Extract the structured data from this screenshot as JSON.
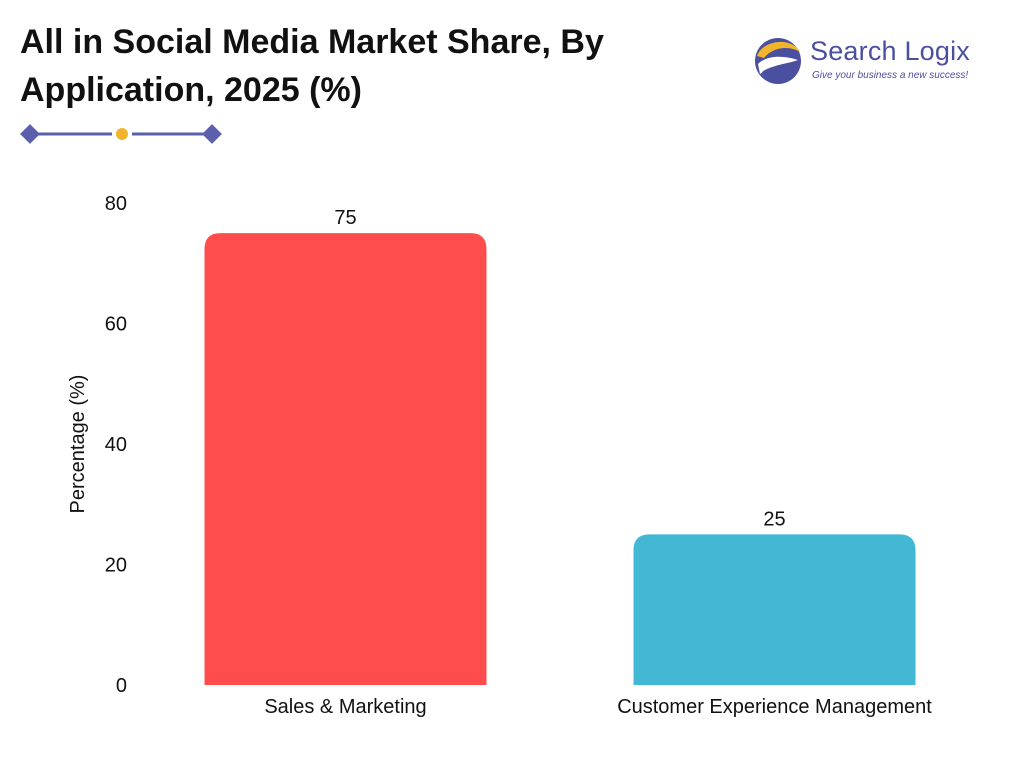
{
  "title_line1": "All in Social Media Market Share, By",
  "title_line2": "Application, 2025 (%)",
  "brand": {
    "name": "Search Logix",
    "tagline": "Give your business a new success!"
  },
  "colors": {
    "accent_line": "#5b60ad",
    "accent_dot": "#f0b52b"
  },
  "chart_data": {
    "type": "bar",
    "title": "All in Social Media Market Share, By Application, 2025 (%)",
    "categories": [
      "Sales & Marketing",
      "Customer Experience Management"
    ],
    "values": [
      75,
      25
    ],
    "colors": [
      "#ff4d4d",
      "#42b8d5"
    ],
    "xlabel": "",
    "ylabel": "Percentage (%)",
    "ylim": [
      0,
      80
    ],
    "yticks": [
      0,
      20,
      40,
      60,
      80
    ],
    "grid": false,
    "data_labels": [
      "75",
      "25"
    ]
  }
}
